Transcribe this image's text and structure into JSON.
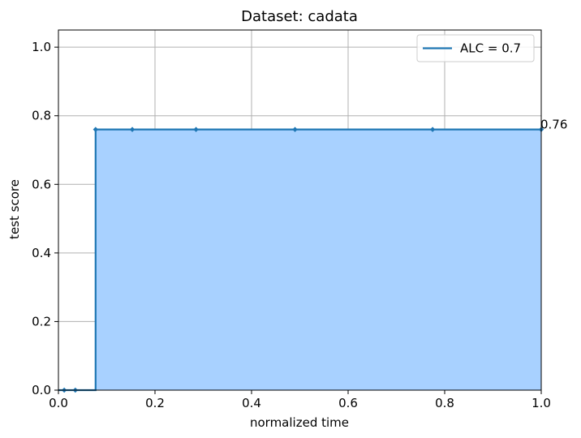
{
  "chart_data": {
    "type": "area",
    "title": "Dataset: cadata",
    "xlabel": "normalized time",
    "ylabel": "test score",
    "xlim": [
      0.0,
      1.0
    ],
    "ylim": [
      0.0,
      1.05
    ],
    "xticks": [
      0.0,
      0.2,
      0.4,
      0.6,
      0.8,
      1.0
    ],
    "xtick_labels": [
      "0.0",
      "0.2",
      "0.4",
      "0.6",
      "0.8",
      "1.0"
    ],
    "yticks": [
      0.0,
      0.2,
      0.4,
      0.6,
      0.8,
      1.0
    ],
    "ytick_labels": [
      "0.0",
      "0.2",
      "0.4",
      "0.6",
      "0.8",
      "1.0"
    ],
    "grid": true,
    "legend": {
      "placement": "top-right",
      "entries": [
        "ALC = 0.7"
      ]
    },
    "series": [
      {
        "name": "ALC = 0.7",
        "step": "post",
        "x": [
          0.0,
          0.012,
          0.035,
          0.077,
          0.153,
          0.285,
          0.49,
          0.775,
          1.0
        ],
        "y": [
          0.0,
          0.0,
          0.0,
          0.76,
          0.76,
          0.76,
          0.76,
          0.76,
          0.76
        ],
        "markers_x": [
          0.012,
          0.035,
          0.077,
          0.153,
          0.285,
          0.49,
          0.775,
          1.0
        ],
        "markers_y": [
          0.0,
          0.0,
          0.76,
          0.76,
          0.76,
          0.76,
          0.76,
          0.76
        ]
      }
    ],
    "annotations": [
      {
        "text": "0.76",
        "x": 1.0,
        "y": 0.76
      }
    ],
    "colors": {
      "line": "#1f77b4",
      "fill": "#a8d1ff",
      "grid": "#b0b0b0"
    }
  }
}
